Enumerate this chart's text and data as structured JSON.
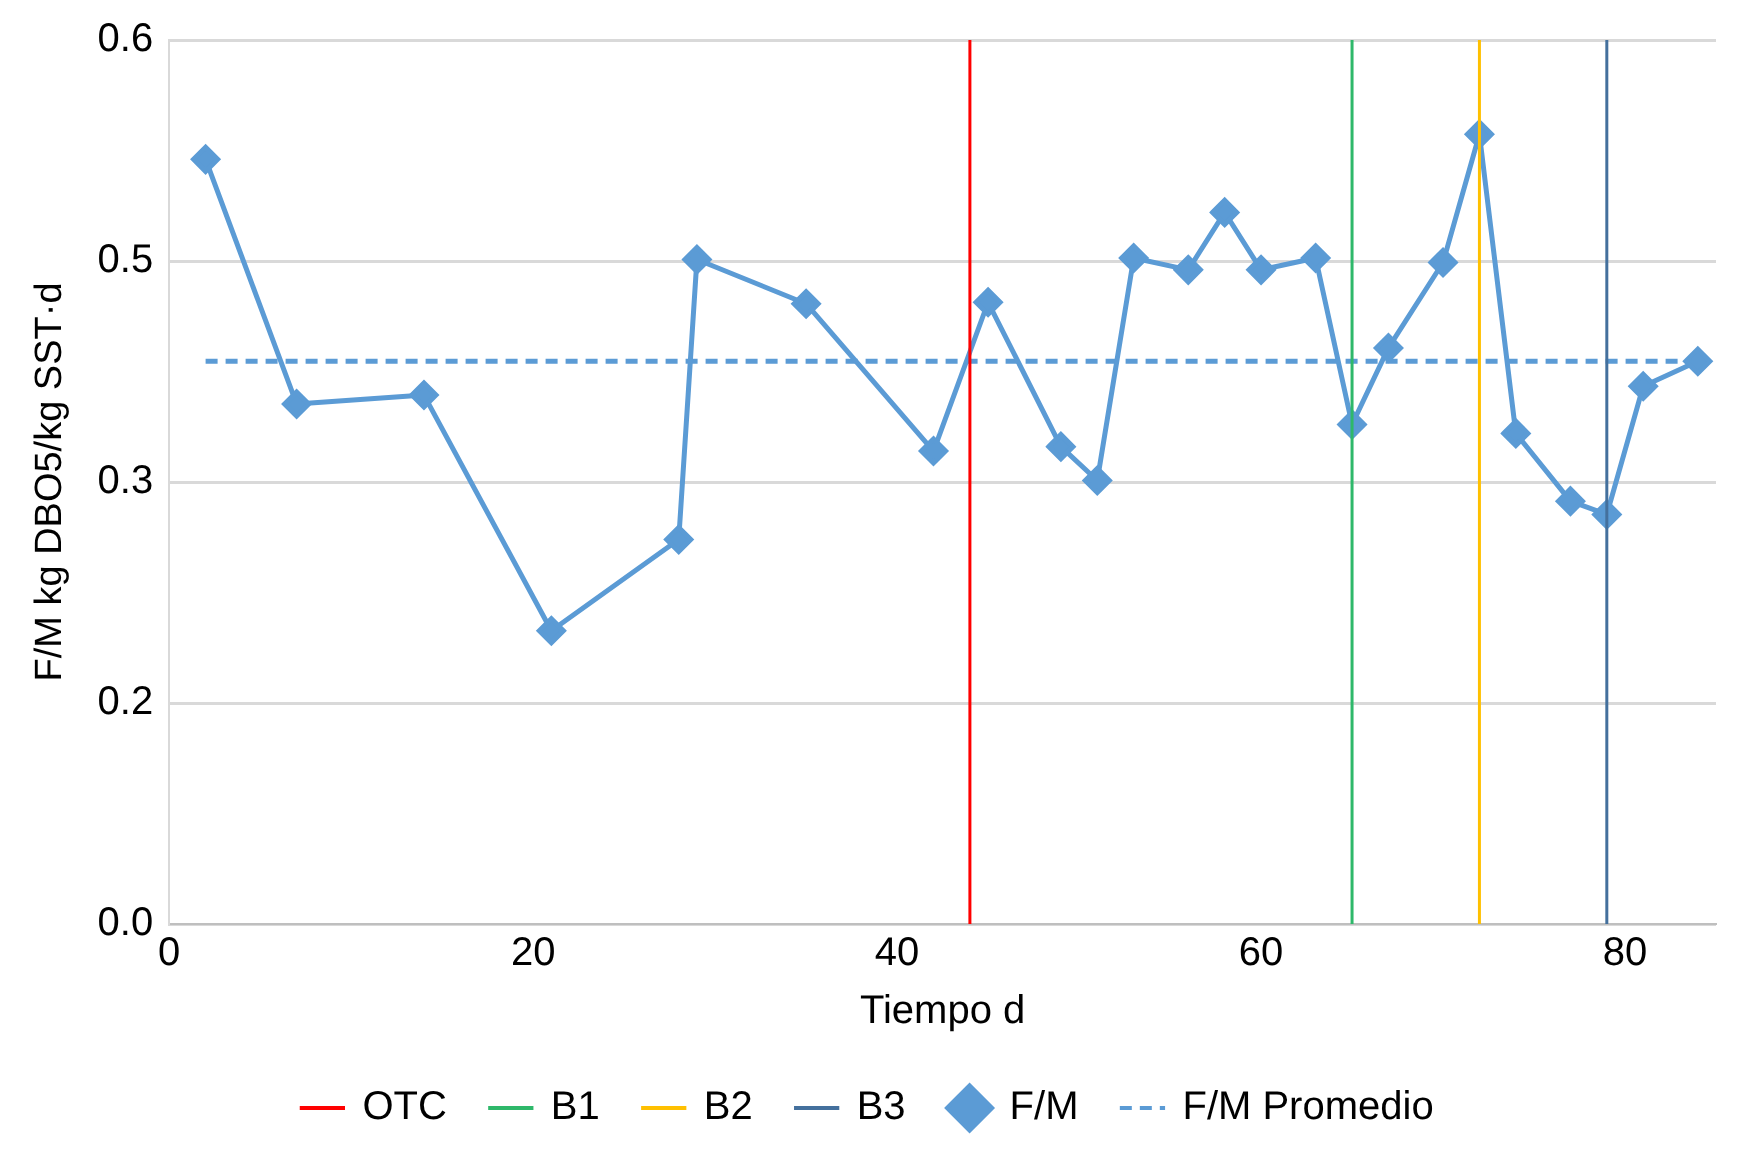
{
  "chart_data": {
    "type": "line",
    "xlabel": "Tiempo d",
    "ylabel": "F/M kg DBO5/kg SST·d",
    "xlim": [
      0,
      85
    ],
    "xticks": [
      0,
      20,
      40,
      60,
      80
    ],
    "ylim": [
      0,
      0.6
    ],
    "yticks": [
      {
        "value": 0,
        "label": "0.0"
      },
      {
        "value": 0.15,
        "label": "0.2"
      },
      {
        "value": 0.3,
        "label": "0.3"
      },
      {
        "value": 0.45,
        "label": "0.5"
      },
      {
        "value": 0.6,
        "label": "0.6"
      }
    ],
    "grid": "y",
    "legend": "bottom",
    "marker": "diamond",
    "ref_lines": [
      {
        "axis": "x",
        "value": 44,
        "label": "OTC",
        "color": "#ff0000"
      },
      {
        "axis": "x",
        "value": 65,
        "label": "B1",
        "color": "#2eb86a"
      },
      {
        "axis": "x",
        "value": 72,
        "label": "B2",
        "color": "#ffc000"
      },
      {
        "axis": "x",
        "value": 79,
        "label": "B3",
        "color": "#44709d"
      }
    ],
    "series": [
      {
        "name": "F/M",
        "color": "#5b9bd5",
        "x": [
          2,
          7,
          14,
          21,
          28,
          29,
          35,
          42,
          45,
          49,
          51,
          53,
          56,
          58,
          60,
          63,
          65,
          67,
          70,
          72,
          74,
          77,
          79,
          81,
          84
        ],
        "values": [
          0.519,
          0.353,
          0.359,
          0.199,
          0.261,
          0.451,
          0.421,
          0.321,
          0.422,
          0.324,
          0.301,
          0.452,
          0.444,
          0.483,
          0.444,
          0.452,
          0.339,
          0.391,
          0.449,
          0.536,
          0.333,
          0.287,
          0.278,
          0.365,
          0.382
        ]
      },
      {
        "name": "F/M Promedio",
        "color": "#5b9bd5",
        "x": [
          2,
          84
        ],
        "values": [
          0.382,
          0.382
        ],
        "marker": "none",
        "line_style": "dashed"
      }
    ]
  }
}
